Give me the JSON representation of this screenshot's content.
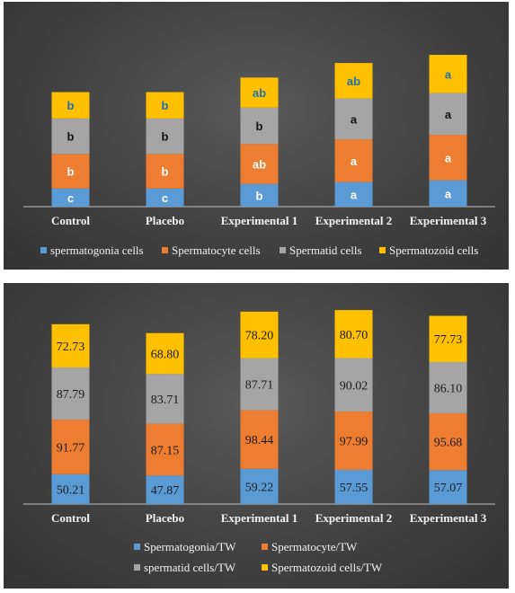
{
  "colors": {
    "spermatogonia": "#5b9bd5",
    "spermatocyte": "#ed7d31",
    "spermatid": "#a5a5a5",
    "spermatozoid": "#ffc000"
  },
  "chart_data": [
    {
      "type": "bar",
      "stacked": true,
      "categories": [
        "Control",
        "Placebo",
        "Experimental 1",
        "Experimental 2",
        "Experimental 3"
      ],
      "series": [
        {
          "name": "spermatogonia cells",
          "values": [
            20,
            20,
            25,
            27,
            29
          ],
          "labels": [
            "c",
            "c",
            "b",
            "a",
            "a"
          ],
          "label_colors": [
            "#ffffff",
            "#ffffff",
            "#ffffff",
            "#ffffff",
            "#ffffff"
          ]
        },
        {
          "name": "Spermatocyte cells",
          "values": [
            38,
            38,
            44,
            47,
            50
          ],
          "labels": [
            "b",
            "b",
            "ab",
            "a",
            "a"
          ],
          "label_colors": [
            "#ffffff",
            "#ffffff",
            "#ffffff",
            "#ffffff",
            "#ffffff"
          ]
        },
        {
          "name": "Spermatid cells",
          "values": [
            39,
            39,
            40,
            45,
            46
          ],
          "labels": [
            "b",
            "b",
            "b",
            "a",
            "a"
          ],
          "label_colors": [
            "#111111",
            "#111111",
            "#111111",
            "#111111",
            "#111111"
          ]
        },
        {
          "name": "Spermatozoid cells",
          "values": [
            29,
            29,
            33,
            39,
            42
          ],
          "labels": [
            "b",
            "b",
            "ab",
            "ab",
            "a"
          ],
          "label_colors": [
            "#1f6fb5",
            "#1f6fb5",
            "#1f6fb5",
            "#1f6fb5",
            "#1f6fb5"
          ]
        }
      ],
      "ylim": [
        0,
        170
      ],
      "grid": false,
      "legend_position": "bottom"
    },
    {
      "type": "bar",
      "stacked": true,
      "categories": [
        "Control",
        "Placebo",
        "Experimental 1",
        "Experimental 2",
        "Experimental 3"
      ],
      "series": [
        {
          "name": "Spermatogonia/TW",
          "values": [
            50.21,
            47.87,
            59.22,
            57.55,
            57.07
          ],
          "labels": [
            "50.21",
            "47.87",
            "59.22",
            "57.55",
            "57.07"
          ]
        },
        {
          "name": "Spermatocyte/TW",
          "values": [
            91.77,
            87.15,
            98.44,
            97.99,
            95.68
          ],
          "labels": [
            "91.77",
            "87.15",
            "98.44",
            "97.99",
            "95.68"
          ]
        },
        {
          "name": "spermatid cells/TW",
          "values": [
            87.79,
            83.71,
            87.71,
            90.02,
            86.1
          ],
          "labels": [
            "87.79",
            "83.71",
            "87.71",
            "90.02",
            "86.10"
          ]
        },
        {
          "name": "Spermatozoid cells/TW",
          "values": [
            72.73,
            68.8,
            78.2,
            80.7,
            77.73
          ],
          "labels": [
            "72.73",
            "68.80",
            "78.20",
            "80.70",
            "77.73"
          ]
        }
      ],
      "ylim": [
        0,
        340
      ],
      "grid": false,
      "legend_position": "bottom"
    }
  ]
}
